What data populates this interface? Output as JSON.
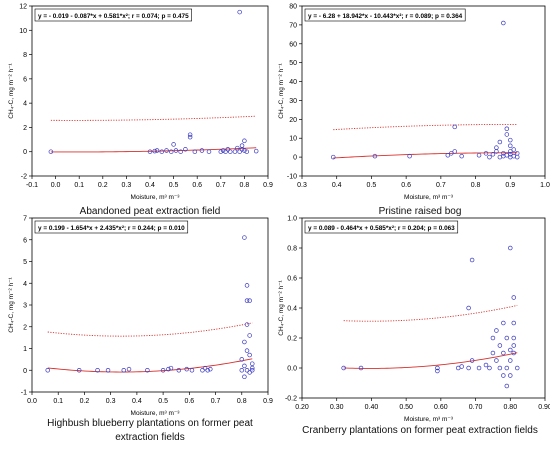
{
  "chart_data": [
    {
      "type": "scatter",
      "caption": "Abandoned peat extraction field",
      "equation": "y = - 0.019 - 0.087*x + 0.581*x²; r = 0.074; p = 0.475",
      "xlabel": "Moisture, m³ m⁻³",
      "ylabel": "CH₄-C, mg m⁻² h⁻¹",
      "xlim": [
        -0.1,
        0.9
      ],
      "ylim": [
        -2,
        12
      ],
      "xticks": [
        -0.1,
        0.0,
        0.1,
        0.2,
        0.3,
        0.4,
        0.5,
        0.6,
        0.7,
        0.8,
        0.9
      ],
      "yticks": [
        -2,
        0,
        2,
        4,
        6,
        8,
        10,
        12
      ],
      "fit": [
        -0.019,
        -0.087,
        0.581
      ],
      "band_width": 2.6,
      "points": [
        [
          -0.02,
          0.0
        ],
        [
          0.4,
          0.0
        ],
        [
          0.42,
          0.05
        ],
        [
          0.43,
          0.1
        ],
        [
          0.45,
          0.0
        ],
        [
          0.47,
          0.1
        ],
        [
          0.49,
          0.0
        ],
        [
          0.5,
          0.6
        ],
        [
          0.51,
          0.1
        ],
        [
          0.53,
          0.0
        ],
        [
          0.55,
          0.2
        ],
        [
          0.57,
          1.2
        ],
        [
          0.57,
          1.4
        ],
        [
          0.59,
          0.0
        ],
        [
          0.62,
          0.1
        ],
        [
          0.65,
          0.0
        ],
        [
          0.7,
          0.0
        ],
        [
          0.71,
          0.1
        ],
        [
          0.72,
          0.0
        ],
        [
          0.73,
          0.2
        ],
        [
          0.74,
          0.0
        ],
        [
          0.76,
          0.0
        ],
        [
          0.77,
          0.3
        ],
        [
          0.78,
          0.0
        ],
        [
          0.79,
          0.2
        ],
        [
          0.79,
          0.5
        ],
        [
          0.8,
          0.9
        ],
        [
          0.8,
          0.1
        ],
        [
          0.81,
          0.0
        ],
        [
          0.78,
          11.5
        ],
        [
          0.85,
          0.05
        ]
      ]
    },
    {
      "type": "scatter",
      "caption": "Pristine raised bog",
      "equation": "y = - 6.28 + 18.942*x - 10.443*x²; r = 0.089; p = 0.364",
      "xlabel": "Moisture, m³ m⁻³",
      "ylabel": "CH₄-C, mg m⁻² h⁻¹",
      "xlim": [
        0.3,
        1.0
      ],
      "ylim": [
        -10,
        80
      ],
      "xticks": [
        0.3,
        0.4,
        0.5,
        0.6,
        0.7,
        0.8,
        0.9,
        1.0
      ],
      "yticks": [
        -10,
        0,
        10,
        20,
        30,
        40,
        50,
        60,
        70,
        80
      ],
      "fit": [
        -6.28,
        18.942,
        -10.443
      ],
      "band_width": 15,
      "points": [
        [
          0.39,
          0.0
        ],
        [
          0.51,
          0.5
        ],
        [
          0.61,
          0.5
        ],
        [
          0.72,
          1.0
        ],
        [
          0.73,
          2.0
        ],
        [
          0.74,
          16.0
        ],
        [
          0.74,
          3.0
        ],
        [
          0.76,
          0.5
        ],
        [
          0.81,
          1.0
        ],
        [
          0.83,
          2.0
        ],
        [
          0.84,
          0.0
        ],
        [
          0.85,
          1.5
        ],
        [
          0.86,
          3.0
        ],
        [
          0.86,
          5.0
        ],
        [
          0.87,
          0.0
        ],
        [
          0.87,
          8.0
        ],
        [
          0.88,
          71.0
        ],
        [
          0.88,
          2.0
        ],
        [
          0.88,
          0.5
        ],
        [
          0.89,
          1.0
        ],
        [
          0.89,
          12.0
        ],
        [
          0.89,
          15.0
        ],
        [
          0.9,
          0.0
        ],
        [
          0.9,
          3.0
        ],
        [
          0.9,
          6.0
        ],
        [
          0.9,
          9.0
        ],
        [
          0.9,
          1.5
        ],
        [
          0.91,
          0.5
        ],
        [
          0.91,
          4.0
        ],
        [
          0.92,
          2.0
        ],
        [
          0.92,
          0.0
        ]
      ]
    },
    {
      "type": "scatter",
      "caption": "Highbush blueberry plantations on former peat extraction fields",
      "equation": "y = 0.199 - 1.654*x + 2.435*x²; r = 0.244; p = 0.010",
      "xlabel": "Moisture, m³ m⁻³",
      "ylabel": "CH₄-C, mg m⁻² h⁻¹",
      "xlim": [
        0.0,
        0.9
      ],
      "ylim": [
        -1,
        7
      ],
      "xticks": [
        0.0,
        0.1,
        0.2,
        0.3,
        0.4,
        0.5,
        0.6,
        0.7,
        0.8,
        0.9
      ],
      "yticks": [
        -1,
        0,
        1,
        2,
        3,
        4,
        5,
        6,
        7
      ],
      "fit": [
        0.199,
        -1.654,
        2.435
      ],
      "band_width": 1.65,
      "points": [
        [
          0.06,
          0.0
        ],
        [
          0.18,
          0.0
        ],
        [
          0.25,
          0.0
        ],
        [
          0.29,
          0.0
        ],
        [
          0.35,
          0.0
        ],
        [
          0.37,
          0.05
        ],
        [
          0.44,
          0.0
        ],
        [
          0.5,
          0.0
        ],
        [
          0.52,
          0.05
        ],
        [
          0.53,
          0.1
        ],
        [
          0.56,
          0.0
        ],
        [
          0.59,
          0.05
        ],
        [
          0.61,
          0.0
        ],
        [
          0.65,
          0.0
        ],
        [
          0.66,
          0.1
        ],
        [
          0.67,
          0.0
        ],
        [
          0.68,
          0.05
        ],
        [
          0.81,
          6.1
        ],
        [
          0.82,
          3.9
        ],
        [
          0.82,
          3.2
        ],
        [
          0.83,
          3.2
        ],
        [
          0.81,
          1.3
        ],
        [
          0.82,
          0.9
        ],
        [
          0.83,
          0.7
        ],
        [
          0.8,
          0.5
        ],
        [
          0.81,
          0.2
        ],
        [
          0.82,
          0.0
        ],
        [
          0.83,
          -0.1
        ],
        [
          0.84,
          0.1
        ],
        [
          0.84,
          0.3
        ],
        [
          0.81,
          -0.3
        ],
        [
          0.8,
          0.0
        ],
        [
          0.83,
          1.6
        ],
        [
          0.82,
          2.1
        ],
        [
          0.84,
          0.0
        ]
      ]
    },
    {
      "type": "scatter",
      "caption": "Cranberry plantations on former peat extraction fields",
      "equation": "y = 0.089 - 0.464*x + 0.585*x²; r = 0.204; p = 0.063",
      "xlabel": "Moisture, m³ m⁻³",
      "ylabel": "CH₄-C, mg m⁻² h⁻¹",
      "xlim": [
        0.2,
        0.9
      ],
      "ylim": [
        -0.2,
        1.0
      ],
      "xticks": [
        0.2,
        0.3,
        0.4,
        0.5,
        0.6,
        0.7,
        0.8,
        0.9
      ],
      "yticks": [
        -0.2,
        0.0,
        0.2,
        0.4,
        0.6,
        0.8,
        1.0
      ],
      "fit": [
        0.089,
        -0.464,
        0.585
      ],
      "band_width": 0.315,
      "points": [
        [
          0.32,
          0.0
        ],
        [
          0.37,
          0.0
        ],
        [
          0.59,
          0.0
        ],
        [
          0.59,
          -0.02
        ],
        [
          0.65,
          0.0
        ],
        [
          0.66,
          0.01
        ],
        [
          0.68,
          0.0
        ],
        [
          0.68,
          0.4
        ],
        [
          0.69,
          0.72
        ],
        [
          0.69,
          0.05
        ],
        [
          0.71,
          0.0
        ],
        [
          0.73,
          0.02
        ],
        [
          0.74,
          0.0
        ],
        [
          0.75,
          0.1
        ],
        [
          0.75,
          0.2
        ],
        [
          0.76,
          0.05
        ],
        [
          0.76,
          0.25
        ],
        [
          0.77,
          0.0
        ],
        [
          0.77,
          0.15
        ],
        [
          0.78,
          0.1
        ],
        [
          0.78,
          0.3
        ],
        [
          0.78,
          -0.05
        ],
        [
          0.79,
          0.0
        ],
        [
          0.79,
          0.2
        ],
        [
          0.79,
          -0.12
        ],
        [
          0.8,
          0.8
        ],
        [
          0.8,
          0.05
        ],
        [
          0.8,
          0.12
        ],
        [
          0.8,
          -0.05
        ],
        [
          0.81,
          0.47
        ],
        [
          0.81,
          0.3
        ],
        [
          0.81,
          0.2
        ],
        [
          0.81,
          0.1
        ],
        [
          0.82,
          0.0
        ],
        [
          0.81,
          0.15
        ]
      ]
    }
  ],
  "colors": {
    "points": "#3b3bc4",
    "fit": "#d9302b",
    "axis": "#000000"
  }
}
